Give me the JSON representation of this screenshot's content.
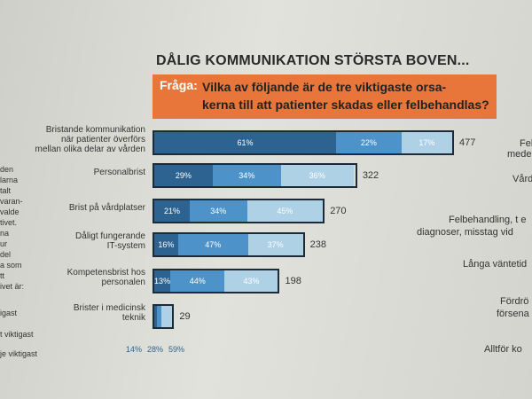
{
  "chart_data": {
    "type": "bar",
    "title": "DÅLIG KOMMUNIKATION STÖRSTA BOVEN...",
    "question_label": "Fråga:",
    "question": "Vilka av följande är de tre viktigaste orsa-\nkerna till att patienter skadas eller felbehandlas?",
    "categories": [
      "Bristande kommunikation\nnär patienter överförs\nmellan olika delar av vården",
      "Personalbrist",
      "Brist på vårdplatser",
      "Dåligt fungerande\nIT-system",
      "Kompetensbrist hos\npersonalen",
      "Brister i medicinsk\nteknik"
    ],
    "totals": [
      477,
      322,
      270,
      238,
      198,
      29
    ],
    "series": [
      {
        "color": "#2d6391",
        "values": [
          61,
          29,
          21,
          16,
          13,
          14
        ],
        "value_labels": [
          "61%",
          "29%",
          "21%",
          "16%",
          "13%",
          "14%"
        ]
      },
      {
        "color": "#4d93c9",
        "values": [
          22,
          34,
          34,
          47,
          44,
          28
        ],
        "value_labels": [
          "22%",
          "34%",
          "34%",
          "47%",
          "44%",
          "28%"
        ]
      },
      {
        "color": "#aed1e6",
        "values": [
          17,
          36,
          45,
          37,
          43,
          59
        ],
        "value_labels": [
          "17%",
          "36%",
          "45%",
          "37%",
          "43%",
          "59%"
        ]
      }
    ],
    "left_fragments": [
      "den",
      "larna",
      "talt",
      "varan-",
      "valde",
      "tivet.",
      "na",
      "ur",
      "del",
      "a som",
      "tt",
      "ivet är:",
      "igast",
      "t viktigast",
      "je viktigast"
    ],
    "right_fragments": [
      "Fel",
      "medels",
      "Vård",
      "Felbehandling, t e",
      "diagnoser, misstag vid",
      "Långa väntetid",
      "Fördrö",
      "försena",
      "Alltför ko"
    ]
  }
}
